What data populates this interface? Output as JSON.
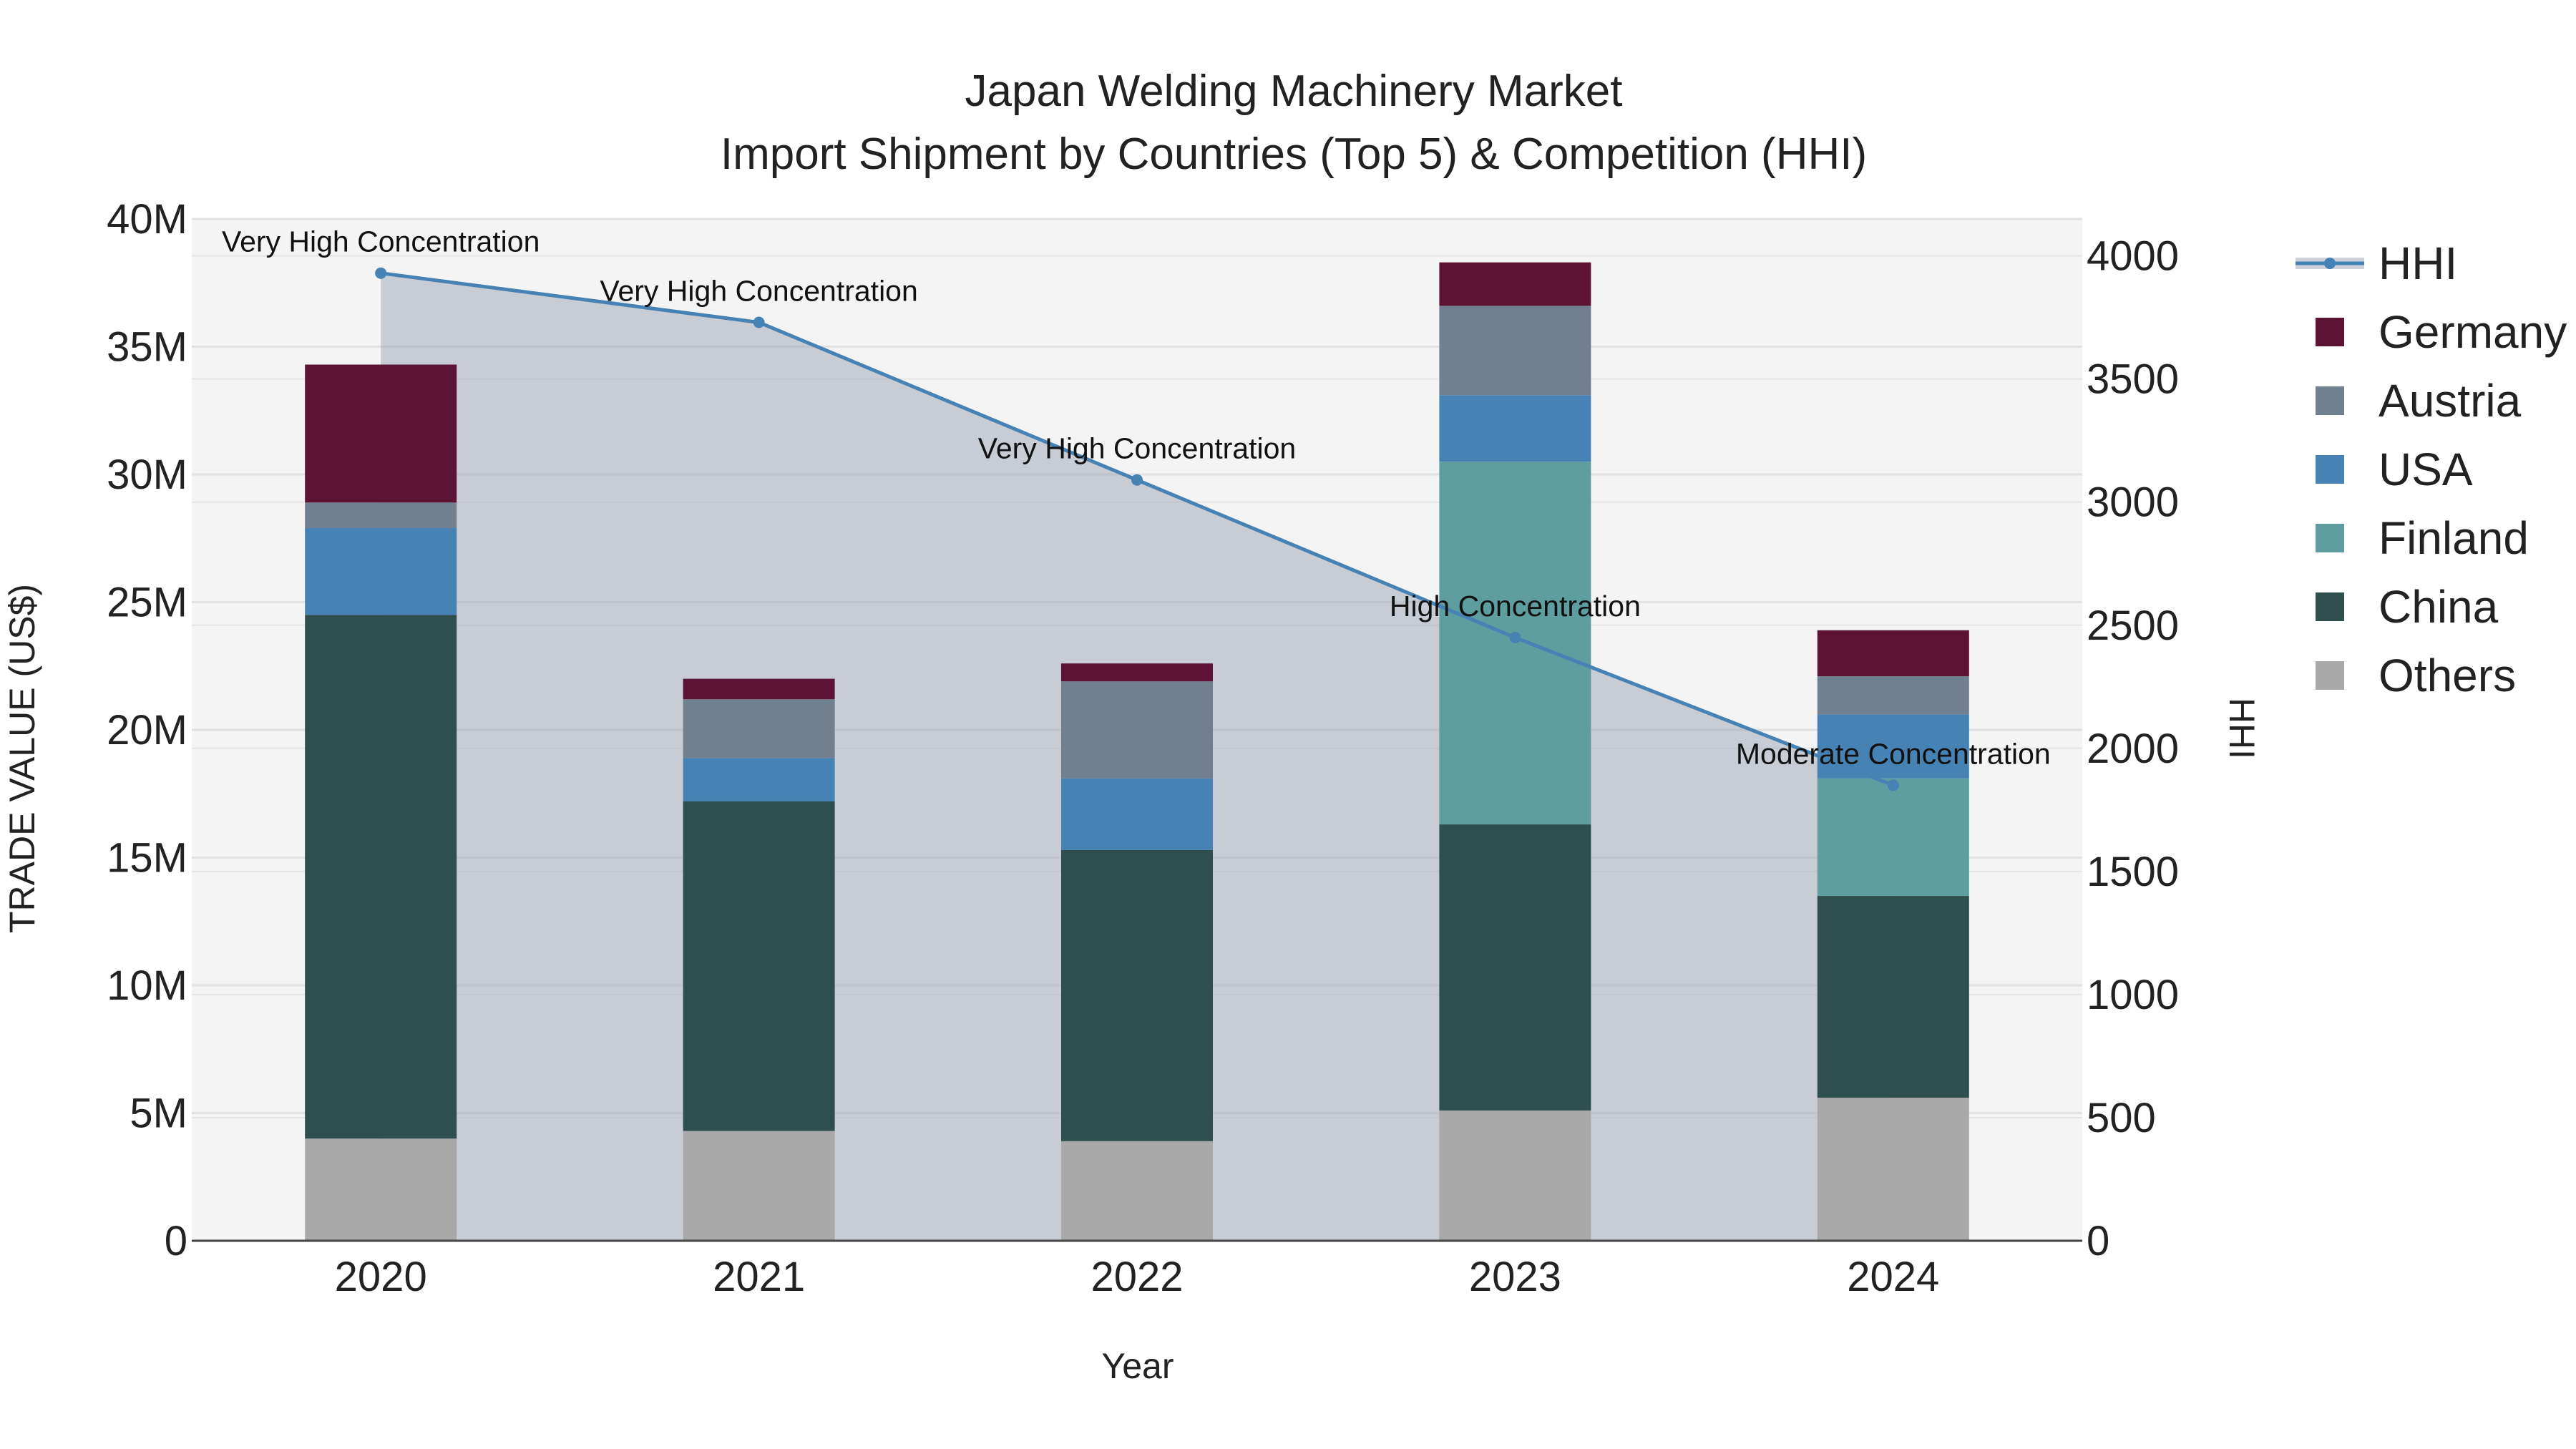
{
  "chart_data": {
    "type": "bar",
    "title": "Japan Welding Machinery Market",
    "subtitle": "Import Shipment by Countries (Top 5) & Competition (HHI)",
    "xlabel": "Year",
    "ylabel": "TRADE VALUE (US$)",
    "y2label": "HHI",
    "categories": [
      "2020",
      "2021",
      "2022",
      "2023",
      "2024"
    ],
    "ylim": [
      0,
      40000000
    ],
    "y2lim": [
      0,
      4150
    ],
    "y_ticks": [
      {
        "value": 0,
        "label": "0"
      },
      {
        "value": 5000000,
        "label": "5M"
      },
      {
        "value": 10000000,
        "label": "10M"
      },
      {
        "value": 15000000,
        "label": "15M"
      },
      {
        "value": 20000000,
        "label": "20M"
      },
      {
        "value": 25000000,
        "label": "25M"
      },
      {
        "value": 30000000,
        "label": "30M"
      },
      {
        "value": 35000000,
        "label": "35M"
      },
      {
        "value": 40000000,
        "label": "40M"
      }
    ],
    "y2_ticks": [
      {
        "value": 0,
        "label": "0"
      },
      {
        "value": 500,
        "label": "500"
      },
      {
        "value": 1000,
        "label": "1000"
      },
      {
        "value": 1500,
        "label": "1500"
      },
      {
        "value": 2000,
        "label": "2000"
      },
      {
        "value": 2500,
        "label": "2500"
      },
      {
        "value": 3000,
        "label": "3000"
      },
      {
        "value": 3500,
        "label": "3500"
      },
      {
        "value": 4000,
        "label": "4000"
      }
    ],
    "series": [
      {
        "name": "Others",
        "color": "#a9a9a9",
        "values": [
          4000000,
          4300000,
          3900000,
          5100000,
          5600000
        ]
      },
      {
        "name": "China",
        "color": "#2f4f4f",
        "values": [
          20500000,
          12900000,
          11400000,
          11200000,
          7900000
        ]
      },
      {
        "name": "Finland",
        "color": "#5f9ea0",
        "values": [
          0,
          0,
          0,
          14200000,
          4600000
        ]
      },
      {
        "name": "USA",
        "color": "#4682b4",
        "values": [
          3400000,
          1700000,
          2800000,
          2600000,
          2500000
        ]
      },
      {
        "name": "Austria",
        "color": "#708090",
        "values": [
          1000000,
          2300000,
          3800000,
          3500000,
          1500000
        ]
      },
      {
        "name": "Germany",
        "color": "#5d1434",
        "values": [
          5400000,
          800000,
          700000,
          1700000,
          1800000
        ]
      }
    ],
    "hhi": {
      "name": "HHI",
      "color": "#4682b4",
      "values": [
        3930,
        3730,
        3090,
        2450,
        1850
      ],
      "labels": [
        "Very High Concentration",
        "Very High Concentration",
        "Very High Concentration",
        "High Concentration",
        "Moderate Concentration"
      ]
    },
    "legend": [
      "HHI",
      "Germany",
      "Austria",
      "USA",
      "Finland",
      "China",
      "Others"
    ],
    "legend_position": "right",
    "grid": true
  }
}
